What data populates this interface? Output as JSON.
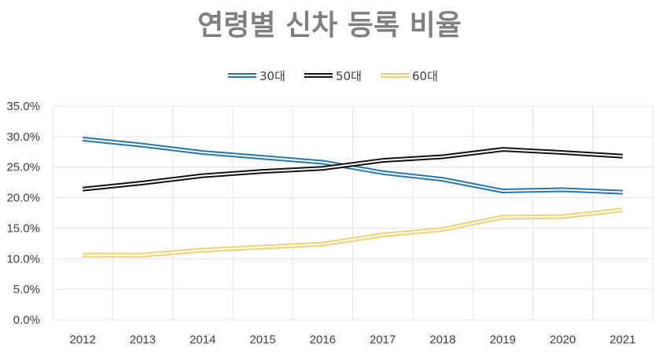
{
  "chart_data": {
    "type": "line",
    "title": "연령별 신차 등록 비율",
    "categories": [
      "2012",
      "2013",
      "2014",
      "2015",
      "2016",
      "2017",
      "2018",
      "2019",
      "2020",
      "2021"
    ],
    "ylim": [
      0,
      35
    ],
    "yticks": [
      "0.0%",
      "5.0%",
      "10.0%",
      "15.0%",
      "20.0%",
      "25.0%",
      "30.0%",
      "35.0%"
    ],
    "grid": true,
    "legend_position": "top",
    "series": [
      {
        "name": "30대",
        "color": "#1f77b4",
        "values": [
          29.6,
          28.6,
          27.4,
          26.6,
          25.8,
          24.1,
          23.0,
          21.1,
          21.3,
          20.9
        ]
      },
      {
        "name": "50대",
        "color": "#111111",
        "values": [
          21.4,
          22.4,
          23.6,
          24.3,
          24.8,
          26.1,
          26.7,
          27.9,
          27.4,
          26.8
        ]
      },
      {
        "name": "60대",
        "color": "#f2d16b",
        "values": [
          10.6,
          10.6,
          11.4,
          11.9,
          12.4,
          13.9,
          14.8,
          16.8,
          16.9,
          18.0
        ]
      }
    ]
  }
}
